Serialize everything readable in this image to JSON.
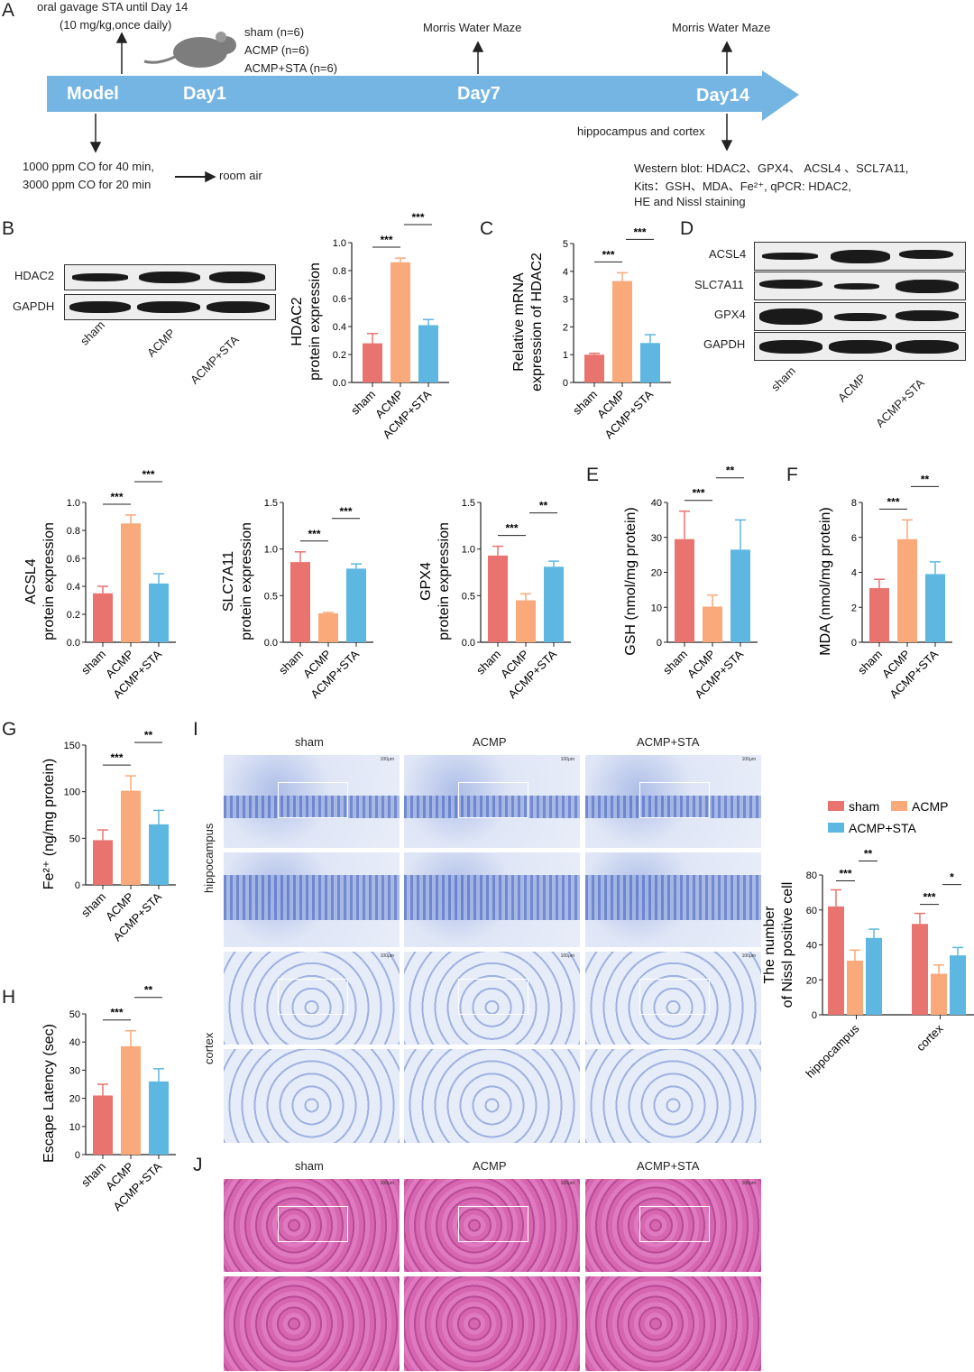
{
  "colors": {
    "sham": "#E8736F",
    "ACMP": "#F9A97A",
    "ACMP+STA": "#5DB7E0",
    "timeline": "#74B5E3"
  },
  "panels": [
    "A",
    "B",
    "C",
    "D",
    "E",
    "F",
    "G",
    "H",
    "I",
    "J"
  ],
  "timeline": {
    "stages": [
      "Model",
      "Day1",
      "Day7",
      "Day14"
    ],
    "gavage": [
      "oral gavage STA until Day 14",
      "(10 mg/kg,once daily)"
    ],
    "groups": [
      "sham (n=6)",
      "ACMP (n=6)",
      "ACMP+STA (n=6)"
    ],
    "mwm1": "Morris Water Maze",
    "mwm2": "Morris Water Maze",
    "co": [
      "1000 ppm CO for 40 min,",
      "3000 ppm CO for 20 min"
    ],
    "room_air": "room air",
    "tissue": "hippocampus and cortex",
    "assays": [
      "Western blot: HDAC2、GPX4、 ACSL4 、SCL7A11,",
      "Kits：GSH、MDA、Fe²⁺, qPCR: HDAC2,",
      "HE and Nissl staining"
    ],
    "icon": "mouse-icon"
  },
  "blots": {
    "B": {
      "rows": [
        "HDAC2",
        "GAPDH"
      ],
      "lanes": [
        "sham",
        "ACMP",
        "ACMP+STA"
      ]
    },
    "D": {
      "rows": [
        "ACSL4",
        "SLC7A11",
        "GPX4",
        "GAPDH"
      ],
      "lanes": [
        "sham",
        "ACMP",
        "ACMP+STA"
      ]
    }
  },
  "histology": {
    "I": {
      "columns": [
        "sham",
        "ACMP",
        "ACMP+STA"
      ],
      "rows": [
        "hippocampus",
        "cortex"
      ],
      "scale": "100μm"
    },
    "J": {
      "columns": [
        "sham",
        "ACMP",
        "ACMP+STA"
      ],
      "scale": "100μm"
    }
  },
  "chart_data": [
    {
      "id": "B",
      "type": "bar",
      "categories": [
        "sham",
        "ACMP",
        "ACMP+STA"
      ],
      "values": [
        0.28,
        0.86,
        0.41
      ],
      "errors": [
        0.07,
        0.03,
        0.04
      ],
      "ylabel": [
        "HDAC2",
        "protein expression"
      ],
      "ylim": [
        0,
        1.0
      ],
      "yticks": [
        "0.0",
        "0.2",
        "0.4",
        "0.6",
        "0.8",
        "1.0"
      ],
      "sig": [
        "***",
        "***"
      ]
    },
    {
      "id": "C",
      "type": "bar",
      "categories": [
        "sham",
        "ACMP",
        "ACMP+STA"
      ],
      "values": [
        1.0,
        3.65,
        1.42
      ],
      "errors": [
        0.05,
        0.3,
        0.3
      ],
      "ylabel": [
        "Relative mRNA",
        "expression of HDAC2"
      ],
      "ylim": [
        0,
        5
      ],
      "yticks": [
        "0",
        "1",
        "2",
        "3",
        "4",
        "5"
      ],
      "sig": [
        "***",
        "***"
      ]
    },
    {
      "id": "ACSL4",
      "type": "bar",
      "categories": [
        "sham",
        "ACMP",
        "ACMP+STA"
      ],
      "values": [
        0.35,
        0.85,
        0.42
      ],
      "errors": [
        0.05,
        0.06,
        0.07
      ],
      "ylabel": [
        "ACSL4",
        "protein expression"
      ],
      "ylim": [
        0,
        1.0
      ],
      "yticks": [
        "0.0",
        "0.2",
        "0.4",
        "0.6",
        "0.8",
        "1.0"
      ],
      "sig": [
        "***",
        "***"
      ]
    },
    {
      "id": "SLC7A11",
      "type": "bar",
      "categories": [
        "sham",
        "ACMP",
        "ACMP+STA"
      ],
      "values": [
        0.86,
        0.31,
        0.79
      ],
      "errors": [
        0.11,
        0.01,
        0.05
      ],
      "ylabel": [
        "SLC7A11",
        "protein expression"
      ],
      "ylim": [
        0,
        1.5
      ],
      "yticks": [
        "0.0",
        "0.5",
        "1.0",
        "1.5"
      ],
      "sig": [
        "***",
        "***"
      ]
    },
    {
      "id": "GPX4",
      "type": "bar",
      "categories": [
        "sham",
        "ACMP",
        "ACMP+STA"
      ],
      "values": [
        0.93,
        0.45,
        0.81
      ],
      "errors": [
        0.1,
        0.07,
        0.06
      ],
      "ylabel": [
        "GPX4",
        "protein expression"
      ],
      "ylim": [
        0,
        1.5
      ],
      "yticks": [
        "0.0",
        "0.5",
        "1.0",
        "1.5"
      ],
      "sig": [
        "***",
        "**"
      ]
    },
    {
      "id": "E",
      "type": "bar",
      "categories": [
        "sham",
        "ACMP",
        "ACMP+STA"
      ],
      "values": [
        29.5,
        10.2,
        26.5
      ],
      "errors": [
        8,
        3.3,
        8.5
      ],
      "ylabel": [
        "GSH (nmol/mg protein)"
      ],
      "ylim": [
        0,
        40
      ],
      "yticks": [
        "0",
        "10",
        "20",
        "30",
        "40"
      ],
      "sig": [
        "***",
        "**"
      ]
    },
    {
      "id": "F",
      "type": "bar",
      "categories": [
        "sham",
        "ACMP",
        "ACMP+STA"
      ],
      "values": [
        3.1,
        5.9,
        3.9
      ],
      "errors": [
        0.5,
        1.1,
        0.7
      ],
      "ylabel": [
        "MDA (nmol/mg protein)"
      ],
      "ylim": [
        0,
        8
      ],
      "yticks": [
        "0",
        "2",
        "4",
        "6",
        "8"
      ],
      "sig": [
        "***",
        "**"
      ]
    },
    {
      "id": "G",
      "type": "bar",
      "categories": [
        "sham",
        "ACMP",
        "ACMP+STA"
      ],
      "values": [
        48,
        101,
        65
      ],
      "errors": [
        11,
        16,
        15
      ],
      "ylabel": [
        "Fe²⁺ (ng/mg protein)"
      ],
      "ylim": [
        0,
        150
      ],
      "yticks": [
        "0",
        "50",
        "100",
        "150"
      ],
      "sig": [
        "***",
        "**"
      ]
    },
    {
      "id": "H",
      "type": "bar",
      "categories": [
        "sham",
        "ACMP",
        "ACMP+STA"
      ],
      "values": [
        21,
        38.5,
        26
      ],
      "errors": [
        4,
        5.5,
        4.5
      ],
      "ylabel": [
        "Escape Latency (sec)"
      ],
      "ylim": [
        0,
        50
      ],
      "yticks": [
        "0",
        "10",
        "20",
        "30",
        "40",
        "50"
      ],
      "sig": [
        "***",
        "**"
      ]
    },
    {
      "id": "I",
      "type": "bar",
      "categories": [
        "hippocampus",
        "cortex"
      ],
      "series": [
        {
          "name": "sham",
          "values": [
            62,
            52
          ],
          "errors": [
            9.5,
            6
          ]
        },
        {
          "name": "ACMP",
          "values": [
            31,
            23.5
          ],
          "errors": [
            6,
            5
          ]
        },
        {
          "name": "ACMP+STA",
          "values": [
            44,
            34
          ],
          "errors": [
            5,
            4.5
          ]
        }
      ],
      "ylabel": [
        "The number",
        "of Nissl positive cell"
      ],
      "ylim": [
        0,
        80
      ],
      "yticks": [
        "0",
        "20",
        "40",
        "60",
        "80"
      ],
      "sig": [
        [
          "***",
          "**"
        ],
        [
          "***",
          "*"
        ]
      ],
      "legend": "top"
    }
  ]
}
